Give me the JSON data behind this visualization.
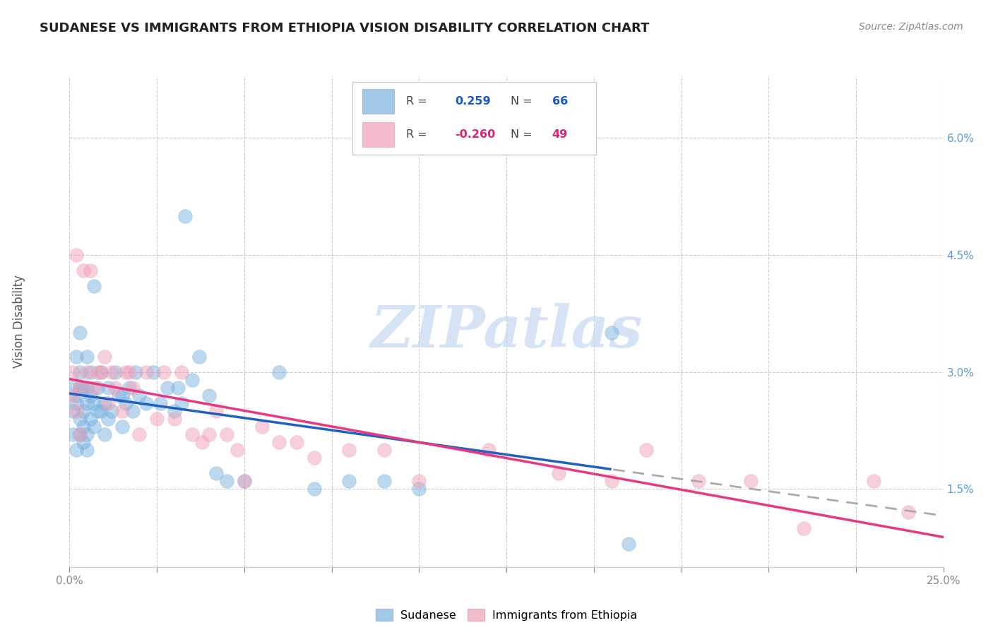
{
  "title": "SUDANESE VS IMMIGRANTS FROM ETHIOPIA VISION DISABILITY CORRELATION CHART",
  "source": "Source: ZipAtlas.com",
  "ylabel": "Vision Disability",
  "ytick_labels": [
    "1.5%",
    "3.0%",
    "4.5%",
    "6.0%"
  ],
  "ytick_values": [
    0.015,
    0.03,
    0.045,
    0.06
  ],
  "xlim": [
    0.0,
    0.25
  ],
  "ylim": [
    0.005,
    0.068
  ],
  "blue_scatter_color": "#7ab3e0",
  "pink_scatter_color": "#f0a0b8",
  "blue_line_color": "#2060c0",
  "pink_line_color": "#e83880",
  "dash_color": "#aaaaaa",
  "blue_line_solid_end": 0.155,
  "watermark_text": "ZIPatlas",
  "watermark_color": "#c5d8f0",
  "sudanese_x": [
    0.001,
    0.001,
    0.001,
    0.002,
    0.002,
    0.002,
    0.002,
    0.003,
    0.003,
    0.003,
    0.003,
    0.003,
    0.004,
    0.004,
    0.004,
    0.004,
    0.005,
    0.005,
    0.005,
    0.005,
    0.005,
    0.006,
    0.006,
    0.006,
    0.007,
    0.007,
    0.007,
    0.008,
    0.008,
    0.009,
    0.009,
    0.01,
    0.01,
    0.011,
    0.011,
    0.012,
    0.013,
    0.014,
    0.015,
    0.015,
    0.016,
    0.017,
    0.018,
    0.019,
    0.02,
    0.022,
    0.024,
    0.026,
    0.028,
    0.03,
    0.031,
    0.032,
    0.033,
    0.035,
    0.037,
    0.04,
    0.042,
    0.045,
    0.05,
    0.06,
    0.07,
    0.08,
    0.09,
    0.1,
    0.155,
    0.16
  ],
  "sudanese_y": [
    0.025,
    0.028,
    0.022,
    0.026,
    0.02,
    0.032,
    0.027,
    0.024,
    0.03,
    0.022,
    0.028,
    0.035,
    0.021,
    0.025,
    0.028,
    0.023,
    0.022,
    0.026,
    0.028,
    0.032,
    0.02,
    0.024,
    0.027,
    0.03,
    0.023,
    0.026,
    0.041,
    0.025,
    0.028,
    0.025,
    0.03,
    0.022,
    0.026,
    0.024,
    0.028,
    0.025,
    0.03,
    0.027,
    0.023,
    0.027,
    0.026,
    0.028,
    0.025,
    0.03,
    0.027,
    0.026,
    0.03,
    0.026,
    0.028,
    0.025,
    0.028,
    0.026,
    0.05,
    0.029,
    0.032,
    0.027,
    0.017,
    0.016,
    0.016,
    0.03,
    0.015,
    0.016,
    0.016,
    0.015,
    0.035,
    0.008
  ],
  "ethiopia_x": [
    0.001,
    0.001,
    0.002,
    0.002,
    0.003,
    0.003,
    0.004,
    0.005,
    0.006,
    0.007,
    0.008,
    0.009,
    0.01,
    0.011,
    0.012,
    0.013,
    0.015,
    0.016,
    0.017,
    0.018,
    0.02,
    0.022,
    0.025,
    0.027,
    0.03,
    0.032,
    0.035,
    0.038,
    0.04,
    0.042,
    0.045,
    0.048,
    0.05,
    0.055,
    0.06,
    0.065,
    0.07,
    0.08,
    0.09,
    0.1,
    0.12,
    0.14,
    0.155,
    0.165,
    0.18,
    0.195,
    0.21,
    0.23,
    0.24
  ],
  "ethiopia_y": [
    0.027,
    0.03,
    0.045,
    0.025,
    0.028,
    0.022,
    0.043,
    0.03,
    0.043,
    0.028,
    0.03,
    0.03,
    0.032,
    0.026,
    0.03,
    0.028,
    0.025,
    0.03,
    0.03,
    0.028,
    0.022,
    0.03,
    0.024,
    0.03,
    0.024,
    0.03,
    0.022,
    0.021,
    0.022,
    0.025,
    0.022,
    0.02,
    0.016,
    0.023,
    0.021,
    0.021,
    0.019,
    0.02,
    0.02,
    0.016,
    0.02,
    0.017,
    0.016,
    0.02,
    0.016,
    0.016,
    0.01,
    0.016,
    0.012
  ]
}
